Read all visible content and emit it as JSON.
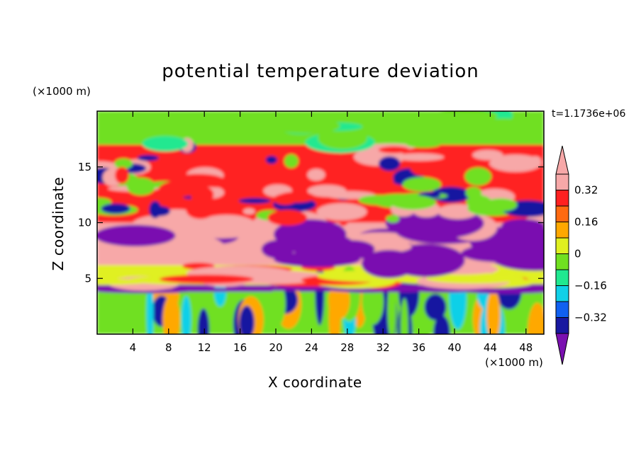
{
  "chart_data": {
    "type": "heatmap",
    "title": "potential temperature deviation",
    "xlabel": "X coordinate",
    "ylabel": "Z coordinate",
    "x_unit": "(×1000 m)",
    "y_unit": "(×1000 m)",
    "time_label": "t=1.1736e+06",
    "xlim": [
      0,
      50
    ],
    "ylim": [
      0,
      20
    ],
    "x_ticks": [
      4,
      8,
      12,
      16,
      20,
      24,
      28,
      32,
      36,
      40,
      44,
      48
    ],
    "y_ticks": [
      5,
      10,
      15
    ],
    "colorbar": {
      "levels": [
        -0.4,
        -0.32,
        -0.24,
        -0.16,
        -0.08,
        0,
        0.08,
        0.16,
        0.24,
        0.32,
        0.4
      ],
      "tick_labels": [
        "0.32",
        "0.16",
        "0",
        "−0.16",
        "−0.32"
      ],
      "tick_values": [
        0.32,
        0.16,
        0,
        -0.16,
        -0.32
      ],
      "colors": [
        "#7a10b0",
        "#1818a0",
        "#1060f0",
        "#10d0e8",
        "#20e890",
        "#70e020",
        "#e0f020",
        "#ffa800",
        "#ff6a10",
        "#ff2020",
        "#f7a8a8"
      ],
      "extend": "both"
    },
    "bands": [
      {
        "z": [
          0,
          3.8
        ],
        "pattern": "vertical plumes",
        "dominant": [
          "#70e020",
          "#ffa800",
          "#1818a0",
          "#10d0e8"
        ]
      },
      {
        "z": [
          3.8,
          4.4
        ],
        "pattern": "layer",
        "dominant": [
          "#7a10b0"
        ]
      },
      {
        "z": [
          4.4,
          6.2
        ],
        "pattern": "layers",
        "dominant": [
          "#e0f020",
          "#ff2020",
          "#f7a8a8"
        ]
      },
      {
        "z": [
          6.2,
          10
        ],
        "pattern": "layer",
        "dominant": [
          "#f7a8a8",
          "#7a10b0"
        ]
      },
      {
        "z": [
          10,
          17
        ],
        "pattern": "cells",
        "dominant": [
          "#ff2020",
          "#1818a0",
          "#f7a8a8",
          "#70e020"
        ]
      },
      {
        "z": [
          17,
          20
        ],
        "pattern": "smooth",
        "dominant": [
          "#70e020",
          "#20e890"
        ]
      }
    ]
  }
}
